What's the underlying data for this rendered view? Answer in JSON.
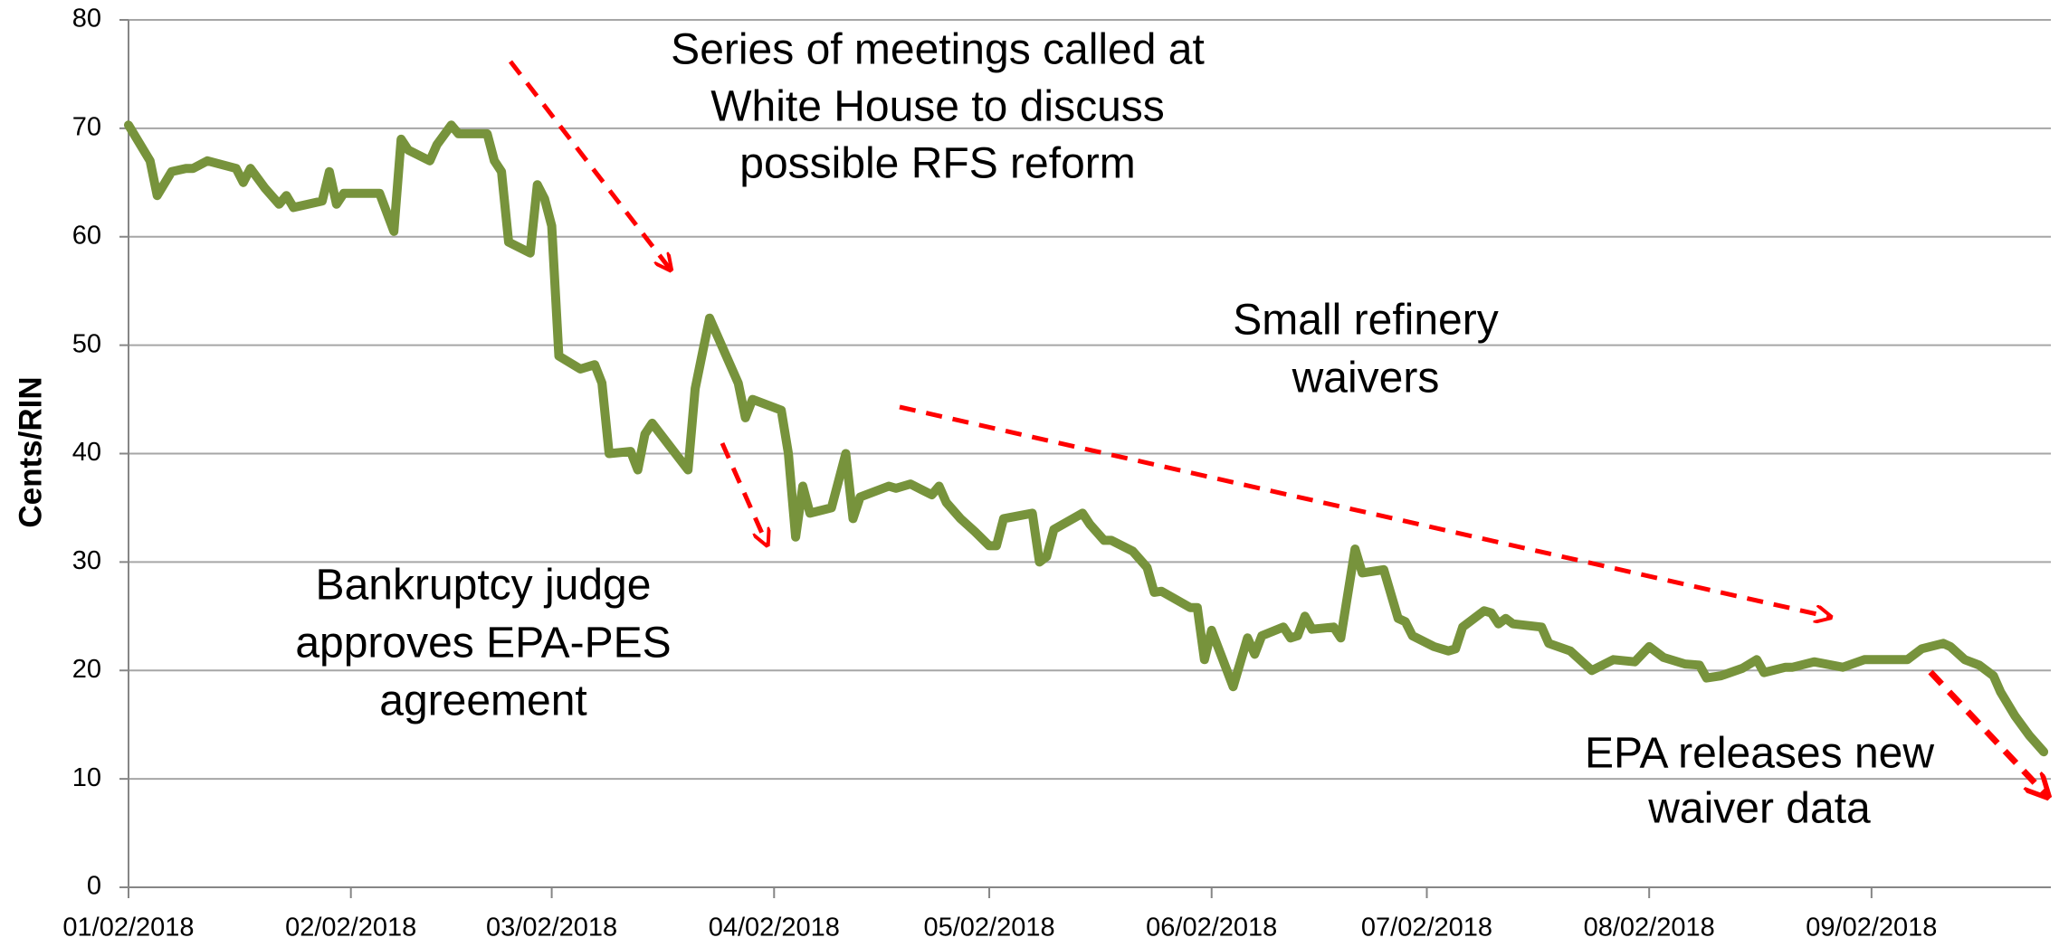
{
  "chart_data": {
    "type": "line",
    "ylabel": "Cents/RIN",
    "color": "#77933c",
    "x": [
      "01/02/2018",
      "01/05/2018",
      "01/06/2018",
      "01/08/2018",
      "01/10/2018",
      "01/11/2018",
      "01/13/2018",
      "01/17/2018",
      "01/18/2018",
      "01/19/2018",
      "01/21/2018",
      "01/23/2018",
      "01/24/2018",
      "01/25/2018",
      "01/29/2018",
      "01/30/2018",
      "01/31/2018",
      "02/01/2018",
      "02/06/2018",
      "02/08/2018",
      "02/09/2018",
      "02/10/2018",
      "02/13/2018",
      "02/14/2018",
      "02/16/2018",
      "02/17/2018",
      "02/21/2018",
      "02/22/2018",
      "02/23/2018",
      "02/24/2018",
      "02/27/2018",
      "02/28/2018",
      "03/01/2018",
      "03/02/2018",
      "03/03/2018",
      "03/06/2018",
      "03/08/2018",
      "03/09/2018",
      "03/10/2018",
      "03/13/2018",
      "03/14/2018",
      "03/15/2018",
      "03/16/2018",
      "03/21/2018",
      "03/22/2018",
      "03/24/2018",
      "03/28/2018",
      "03/29/2018",
      "03/30/2018",
      "04/03/2018",
      "04/04/2018",
      "04/05/2018",
      "04/06/2018",
      "04/07/2018",
      "04/10/2018",
      "04/11/2018",
      "04/12/2018",
      "04/13/2018",
      "04/14/2018",
      "04/16/2018",
      "04/18/2018",
      "04/19/2018",
      "04/21/2018",
      "04/24/2018",
      "04/25/2018",
      "04/26/2018",
      "04/28/2018",
      "04/30/2018",
      "05/02/2018",
      "05/03/2018",
      "05/04/2018",
      "05/08/2018",
      "05/09/2018",
      "05/10/2018",
      "05/11/2018",
      "05/15/2018",
      "05/16/2018",
      "05/18/2018",
      "05/19/2018",
      "05/22/2018",
      "05/24/2018",
      "05/25/2018",
      "05/26/2018",
      "05/30/2018",
      "05/31/2018",
      "06/01/2018",
      "06/02/2018",
      "06/05/2018",
      "06/07/2018",
      "06/08/2018",
      "06/09/2018",
      "06/12/2018",
      "06/13/2018",
      "06/14/2018",
      "06/15/2018",
      "06/16/2018",
      "06/19/2018",
      "06/20/2018",
      "06/22/2018",
      "06/23/2018",
      "06/26/2018",
      "06/28/2018",
      "06/29/2018",
      "06/30/2018",
      "07/03/2018",
      "07/05/2018",
      "07/06/2018",
      "07/07/2018",
      "07/10/2018",
      "07/11/2018",
      "07/12/2018",
      "07/13/2018",
      "07/14/2018",
      "07/18/2018",
      "07/19/2018",
      "07/22/2018",
      "07/25/2018",
      "07/28/2018",
      "07/31/2018",
      "08/02/2018",
      "08/04/2018",
      "08/07/2018",
      "08/09/2018",
      "08/10/2018",
      "08/12/2018",
      "08/15/2018",
      "08/17/2018",
      "08/18/2018",
      "08/21/2018",
      "08/22/2018",
      "08/25/2018",
      "08/29/2018",
      "09/01/2018",
      "09/05/2018",
      "09/07/2018",
      "09/09/2018",
      "09/12/2018",
      "09/13/2018",
      "09/15/2018",
      "09/17/2018",
      "09/19/2018",
      "09/20/2018",
      "09/22/2018",
      "09/24/2018",
      "09/26/2018"
    ],
    "values": [
      70.3,
      67,
      63.8,
      66,
      66.3,
      66.3,
      67,
      66.3,
      65,
      66.3,
      64.5,
      63,
      63.8,
      62.7,
      63.3,
      66,
      63,
      64,
      64,
      60.5,
      69,
      68,
      67,
      68.5,
      70.3,
      69.5,
      69.5,
      67,
      66,
      59.5,
      58.5,
      64.8,
      63.5,
      61,
      49,
      47.8,
      48.2,
      46.5,
      40,
      40.2,
      38.5,
      41.8,
      42.8,
      38.5,
      46,
      52.5,
      46.5,
      43.3,
      45,
      44,
      40,
      32.3,
      37,
      34.5,
      35,
      37.5,
      40,
      34,
      36,
      36.5,
      37,
      36.8,
      37.2,
      36.2,
      37,
      35.5,
      34,
      32.8,
      31.5,
      31.5,
      34,
      34.5,
      30,
      30.5,
      33,
      34.5,
      33.5,
      32,
      32,
      31,
      29.5,
      27.2,
      27.3,
      25.8,
      25.8,
      21,
      23.7,
      18.5,
      23,
      21.5,
      23.2,
      24,
      23,
      23.2,
      25,
      23.8,
      24,
      23,
      31.2,
      29,
      29.3,
      24.8,
      24.5,
      23.2,
      22.2,
      21.8,
      22,
      24,
      25.5,
      25.3,
      24.3,
      24.8,
      24.3,
      24,
      22.5,
      21.8,
      20,
      21,
      20.8,
      22.2,
      21.2,
      20.6,
      20.5,
      19.3,
      19.5,
      20.2,
      21,
      19.8,
      20.3,
      20.3,
      20.8,
      20.3,
      21,
      21,
      21,
      22,
      22.5,
      22.2,
      21,
      20.5,
      19.5,
      18,
      15.8,
      14,
      12.5
    ],
    "xlim": [
      "01/02/2018",
      "09/27/2018"
    ],
    "xticks": [
      "01/02/2018",
      "02/02/2018",
      "03/02/2018",
      "04/02/2018",
      "05/02/2018",
      "06/02/2018",
      "07/02/2018",
      "08/02/2018",
      "09/02/2018"
    ],
    "ylim": [
      0,
      80
    ],
    "yticks": [
      0,
      10,
      20,
      30,
      40,
      50,
      60,
      70,
      80
    ],
    "grid": true,
    "annotations": [
      {
        "lines": [
          "Series of meetings called at",
          "White House to discuss",
          "possible RFS reform"
        ]
      },
      {
        "lines": [
          "Small refinery",
          "waivers"
        ]
      },
      {
        "lines": [
          "Bankruptcy judge",
          "approves EPA-PES",
          "agreement"
        ]
      },
      {
        "lines": [
          "EPA releases new",
          "waiver data"
        ]
      }
    ]
  }
}
